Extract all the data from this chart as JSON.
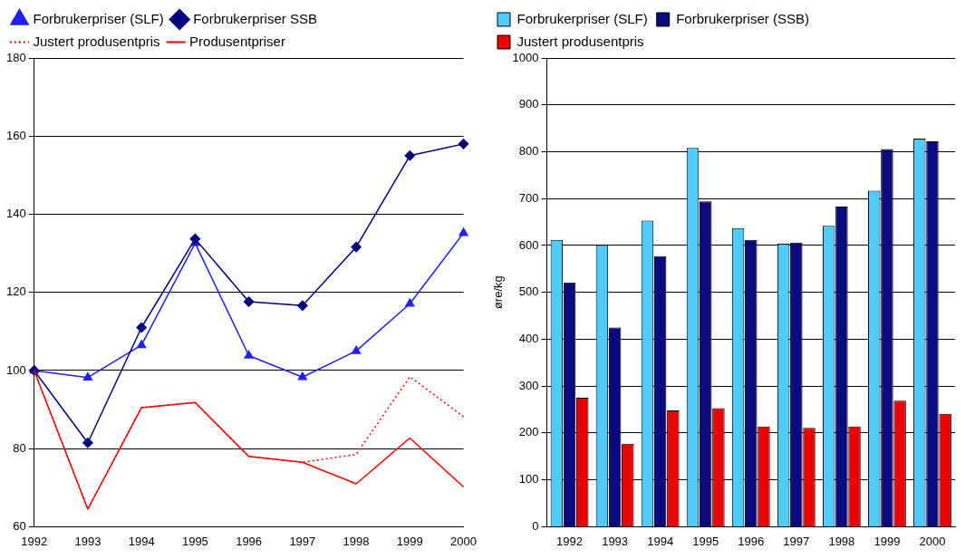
{
  "chart_data": [
    {
      "type": "line",
      "categories": [
        "1992",
        "1993",
        "1994",
        "1995",
        "1996",
        "1997",
        "1998",
        "1999",
        "2000"
      ],
      "series": [
        {
          "name": "Forbrukerpriser (SLF)",
          "color": "#1f1fff",
          "marker": "triangle",
          "line_style": "solid",
          "values": [
            100,
            98.2,
            106.5,
            132.6,
            103.8,
            98.3,
            105,
            117.1,
            135.2
          ]
        },
        {
          "name": "Forbrukerpriser SSB",
          "color": "#000080",
          "marker": "diamond",
          "line_style": "solid",
          "values": [
            100,
            81.5,
            111,
            133.7,
            117.6,
            116.6,
            131.6,
            155,
            158
          ]
        },
        {
          "name": "Justert produsentpris",
          "color": "#ff0000",
          "marker": "none",
          "line_style": "dotted",
          "values": [
            100,
            64.5,
            90.5,
            91.8,
            78,
            76.5,
            78.5,
            98.4,
            88.2
          ]
        },
        {
          "name": "Produsentpriser",
          "color": "#ff0000",
          "marker": "none",
          "line_style": "solid",
          "values": [
            100,
            64.5,
            90.5,
            91.8,
            78,
            76.5,
            71,
            82.7,
            70.2
          ]
        }
      ],
      "ylim": [
        60,
        180
      ],
      "yticks": [
        60,
        80,
        100,
        120,
        140,
        160,
        180
      ],
      "grid": "y",
      "legend": "top left"
    },
    {
      "type": "bar",
      "ylabel": "øre/kg",
      "categories": [
        "1992",
        "1993",
        "1994",
        "1995",
        "1996",
        "1997",
        "1998",
        "1999",
        "2000"
      ],
      "series": [
        {
          "name": "Forbrukerpriser (SLF)",
          "color": "#4dccff",
          "values": [
            612,
            601,
            653,
            808,
            637,
            604,
            642,
            717,
            828
          ]
        },
        {
          "name": "Forbrukerpriser (SSB)",
          "color": "#0a0a80",
          "values": [
            521,
            425,
            577,
            694,
            612,
            606,
            683,
            806,
            822
          ]
        },
        {
          "name": "Justert produsentpris",
          "color": "#ee0000",
          "values": [
            275,
            177,
            248,
            253,
            214,
            211,
            214,
            269,
            241
          ]
        }
      ],
      "ylim": [
        0,
        1000
      ],
      "yticks": [
        0,
        100,
        200,
        300,
        400,
        500,
        600,
        700,
        800,
        900,
        1000
      ],
      "grid": "y",
      "legend": "top left"
    }
  ]
}
